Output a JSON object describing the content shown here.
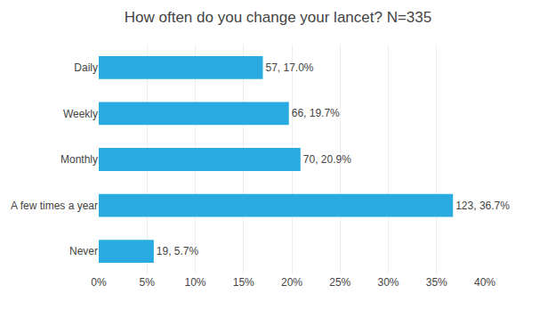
{
  "chart_data": {
    "type": "bar",
    "orientation": "horizontal",
    "title": "How often do you change your lancet? N=335",
    "categories": [
      "Daily",
      "Weekly",
      "Monthly",
      "A few times a year",
      "Never"
    ],
    "values": [
      17.0,
      19.7,
      20.9,
      36.7,
      5.7
    ],
    "value_labels": [
      "57, 17.0%",
      "66, 19.7%",
      "70, 20.9%",
      "123, 36.7%",
      "19, 5.7%"
    ],
    "data_labels": true,
    "color": "#29ABE2",
    "xlim": [
      0,
      40
    ],
    "xticks": [
      {
        "value": 0,
        "label": "0%"
      },
      {
        "value": 5,
        "label": "5%"
      },
      {
        "value": 10,
        "label": "10%"
      },
      {
        "value": 15,
        "label": "15%"
      },
      {
        "value": 20,
        "label": "20%"
      },
      {
        "value": 25,
        "label": "25%"
      },
      {
        "value": 30,
        "label": "30%"
      },
      {
        "value": 35,
        "label": "35%"
      },
      {
        "value": 40,
        "label": "40%"
      }
    ],
    "grid": true
  }
}
